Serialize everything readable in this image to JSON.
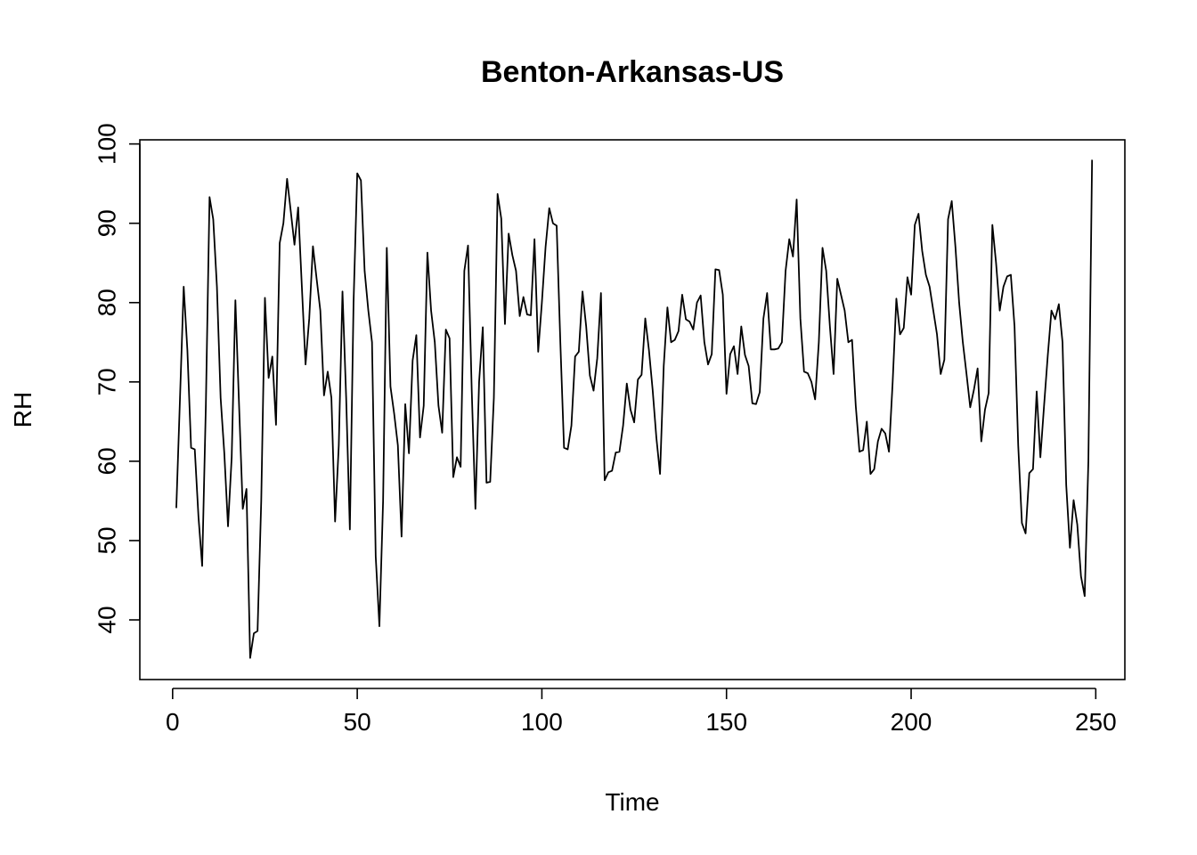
{
  "chart_data": {
    "type": "line",
    "title": "Benton-Arkansas-US",
    "xlabel": "Time",
    "ylabel": "RH",
    "xlim": [
      1,
      248
    ],
    "ylim": [
      35,
      98
    ],
    "x_ticks": [
      0,
      50,
      100,
      150,
      200,
      250
    ],
    "y_ticks": [
      40,
      50,
      60,
      70,
      80,
      90,
      100
    ],
    "grid": false,
    "legend": "none",
    "line_color": "#000000",
    "series": [
      {
        "values": [
          54.1,
          68.0,
          82.0,
          74.0,
          61.7,
          61.5,
          53.0,
          46.8,
          67.0,
          93.3,
          90.5,
          82.0,
          68.0,
          61.0,
          51.8,
          60.5,
          80.3,
          67.0,
          54.0,
          56.5,
          35.2,
          38.3,
          38.6,
          55.0,
          80.6,
          70.5,
          73.2,
          64.6,
          87.5,
          90.0,
          95.6,
          91.5,
          87.3,
          92.0,
          82.0,
          72.2,
          78.0,
          87.1,
          83.0,
          79.0,
          68.3,
          71.3,
          68.0,
          52.4,
          62.0,
          81.4,
          68.0,
          51.4,
          80.0,
          96.3,
          95.4,
          84.0,
          79.0,
          75.0,
          48.0,
          39.2,
          55.0,
          86.9,
          69.4,
          66.0,
          62.0,
          50.5,
          67.2,
          61.0,
          72.7,
          75.9,
          63.0,
          67.0,
          86.3,
          79.0,
          75.0,
          67.0,
          63.6,
          76.6,
          75.5,
          58.0,
          60.5,
          59.3,
          84.0,
          87.2,
          69.0,
          54.0,
          70.0,
          76.9,
          57.3,
          57.4,
          68.0,
          93.7,
          90.6,
          77.3,
          88.7,
          86.0,
          84.0,
          78.3,
          80.7,
          78.5,
          78.4,
          88.0,
          73.8,
          80.0,
          87.0,
          91.9,
          90.0,
          89.7,
          75.0,
          61.7,
          61.5,
          64.5,
          73.2,
          73.8,
          81.4,
          77.0,
          70.8,
          68.9,
          73.0,
          81.2,
          57.6,
          58.6,
          58.8,
          61.1,
          61.2,
          64.5,
          69.8,
          66.5,
          64.9,
          70.3,
          70.9,
          78.0,
          74.0,
          69.0,
          63.0,
          58.4,
          72.0,
          79.4,
          75.0,
          75.3,
          76.4,
          81.0,
          77.9,
          77.6,
          76.6,
          80.0,
          80.9,
          75.0,
          72.2,
          73.5,
          84.2,
          84.1,
          81.0,
          68.5,
          73.5,
          74.5,
          71.0,
          77.0,
          73.4,
          72.0,
          67.3,
          67.2,
          68.7,
          78.0,
          81.2,
          74.1,
          74.1,
          74.2,
          75.0,
          84.0,
          88.0,
          85.8,
          93.0,
          78.0,
          71.3,
          71.1,
          70.0,
          67.8,
          75.0,
          86.9,
          84.0,
          77.0,
          71.0,
          83.0,
          81.0,
          79.0,
          75.0,
          75.3,
          67.0,
          61.2,
          61.4,
          65.0,
          58.4,
          59.0,
          62.5,
          64.1,
          63.5,
          61.2,
          70.0,
          80.5,
          76.0,
          76.8,
          83.2,
          81.0,
          89.8,
          91.2,
          86.5,
          83.5,
          82.0,
          79.0,
          76.0,
          71.0,
          72.8,
          90.5,
          92.8,
          87.0,
          80.0,
          75.0,
          71.0,
          66.8,
          69.0,
          71.7,
          62.5,
          66.5,
          68.6,
          89.8,
          85.0,
          79.0,
          82.0,
          83.3,
          83.5,
          77.0,
          62.0,
          52.2,
          50.9,
          58.5,
          59.0,
          68.8,
          60.5,
          67.0,
          73.3,
          79.0,
          77.9,
          79.8,
          75.0,
          57.0,
          49.1,
          55.1,
          52.0,
          45.5,
          43.0,
          60.0,
          98.0
        ]
      }
    ]
  }
}
